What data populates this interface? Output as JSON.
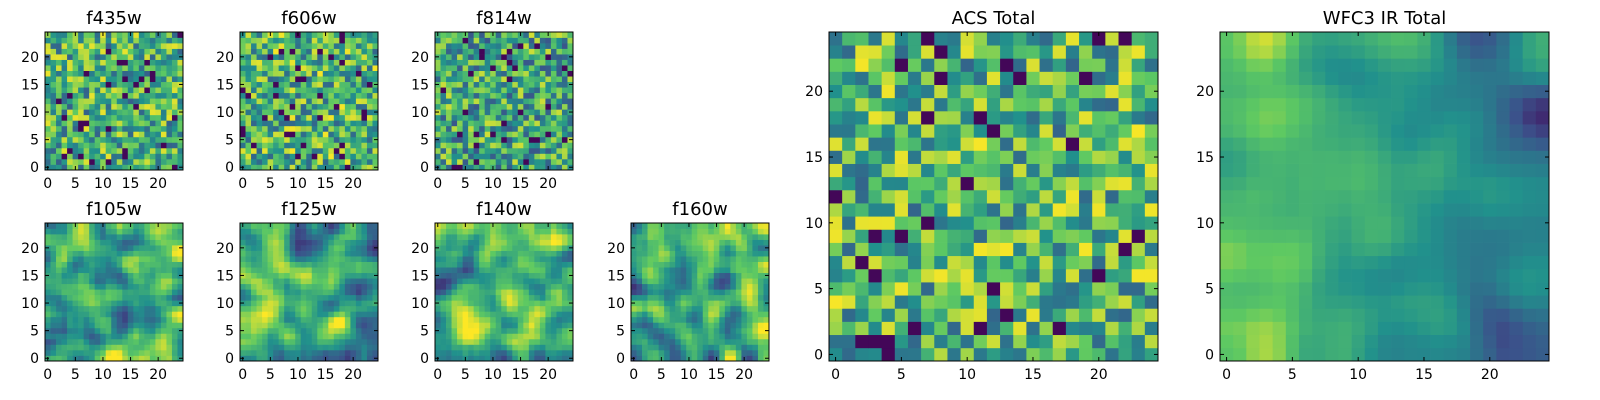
{
  "colormap": "viridis",
  "colors": {
    "low": "#440154",
    "mid": "#21918c",
    "high": "#fde725",
    "axes": "#000000",
    "background": "#ffffff"
  },
  "chart_data": [
    {
      "type": "heatmap",
      "title": "f435w",
      "xticks": [
        "0",
        "5",
        "10",
        "15",
        "20"
      ],
      "yticks": [
        "0",
        "5",
        "10",
        "15",
        "20"
      ],
      "xlim": [
        -0.5,
        24.5
      ],
      "ylim": [
        -0.5,
        24.5
      ],
      "grid_size": 25,
      "texture": "noise",
      "seed": 11,
      "mean": 0.62
    },
    {
      "type": "heatmap",
      "title": "f606w",
      "xticks": [
        "0",
        "5",
        "10",
        "15",
        "20"
      ],
      "yticks": [
        "0",
        "5",
        "10",
        "15",
        "20"
      ],
      "xlim": [
        -0.5,
        24.5
      ],
      "ylim": [
        -0.5,
        24.5
      ],
      "grid_size": 25,
      "texture": "noise",
      "seed": 23,
      "mean": 0.64
    },
    {
      "type": "heatmap",
      "title": "f814w",
      "xticks": [
        "0",
        "5",
        "10",
        "15",
        "20"
      ],
      "yticks": [
        "0",
        "5",
        "10",
        "15",
        "20"
      ],
      "xlim": [
        -0.5,
        24.5
      ],
      "ylim": [
        -0.5,
        24.5
      ],
      "grid_size": 25,
      "texture": "noise",
      "seed": 37,
      "mean": 0.58
    },
    {
      "type": "heatmap",
      "title": "f105w",
      "xticks": [
        "0",
        "5",
        "10",
        "15",
        "20"
      ],
      "yticks": [
        "0",
        "5",
        "10",
        "15",
        "20"
      ],
      "xlim": [
        -0.5,
        24.5
      ],
      "ylim": [
        -0.5,
        24.5
      ],
      "grid_size": 25,
      "texture": "smooth",
      "seed": 41,
      "mean": 0.66
    },
    {
      "type": "heatmap",
      "title": "f125w",
      "xticks": [
        "0",
        "5",
        "10",
        "15",
        "20"
      ],
      "yticks": [
        "0",
        "5",
        "10",
        "15",
        "20"
      ],
      "xlim": [
        -0.5,
        24.5
      ],
      "ylim": [
        -0.5,
        24.5
      ],
      "grid_size": 25,
      "texture": "smooth",
      "seed": 53,
      "mean": 0.6
    },
    {
      "type": "heatmap",
      "title": "f140w",
      "xticks": [
        "0",
        "5",
        "10",
        "15",
        "20"
      ],
      "yticks": [
        "0",
        "5",
        "10",
        "15",
        "20"
      ],
      "xlim": [
        -0.5,
        24.5
      ],
      "ylim": [
        -0.5,
        24.5
      ],
      "grid_size": 25,
      "texture": "smooth",
      "seed": 67,
      "mean": 0.62
    },
    {
      "type": "heatmap",
      "title": "f160w",
      "xticks": [
        "0",
        "5",
        "10",
        "15",
        "20"
      ],
      "yticks": [
        "0",
        "5",
        "10",
        "15",
        "20"
      ],
      "xlim": [
        -0.5,
        24.5
      ],
      "ylim": [
        -0.5,
        24.5
      ],
      "grid_size": 25,
      "texture": "smooth",
      "seed": 79,
      "mean": 0.6
    },
    {
      "type": "heatmap",
      "title": "ACS Total",
      "xticks": [
        "0",
        "5",
        "10",
        "15",
        "20"
      ],
      "yticks": [
        "0",
        "5",
        "10",
        "15",
        "20"
      ],
      "xlim": [
        -0.5,
        24.5
      ],
      "ylim": [
        -0.5,
        24.5
      ],
      "grid_size": 25,
      "texture": "noise",
      "seed": 97,
      "mean": 0.64
    },
    {
      "type": "heatmap",
      "title": "WFC3 IR Total",
      "xticks": [
        "0",
        "5",
        "10",
        "15",
        "20"
      ],
      "yticks": [
        "0",
        "5",
        "10",
        "15",
        "20"
      ],
      "xlim": [
        -0.5,
        24.5
      ],
      "ylim": [
        -0.5,
        24.5
      ],
      "grid_size": 25,
      "texture": "gradient",
      "seed": 113,
      "mean": 0.58
    }
  ]
}
